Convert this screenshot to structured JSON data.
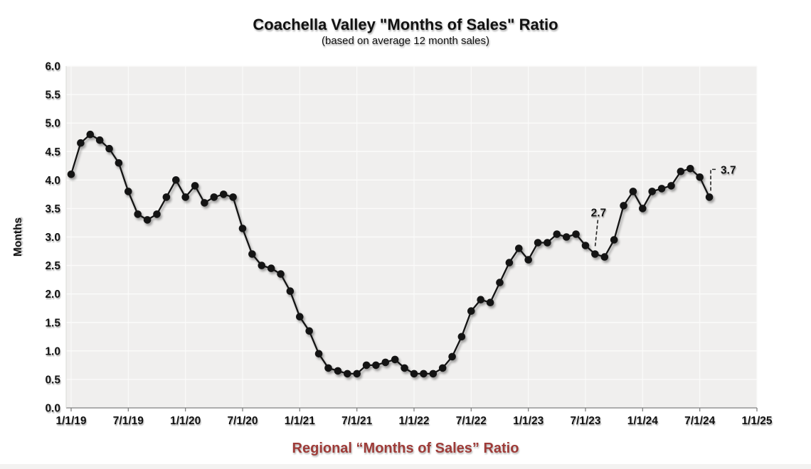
{
  "header": {
    "title": "Coachella Valley \"Months of Sales\" Ratio",
    "subtitle": "(based on average 12 month sales)"
  },
  "footer": {
    "label": "Regional “Months of Sales” Ratio",
    "color": "#9e3b38"
  },
  "chart_data": {
    "type": "line",
    "title": "Coachella Valley \"Months of Sales\" Ratio",
    "subtitle": "(based on average 12 month sales)",
    "ylabel": "Months",
    "xlabel": "",
    "ylim": [
      0.0,
      6.0
    ],
    "ytick_step": 0.5,
    "grid": true,
    "legend": "none",
    "x_tick_labels": [
      "1/1/19",
      "7/1/19",
      "1/1/20",
      "7/1/20",
      "1/1/21",
      "7/1/21",
      "1/1/22",
      "7/1/22",
      "1/1/23",
      "7/1/23",
      "1/1/24",
      "7/1/24",
      "1/1/25"
    ],
    "x_start_month": "1/1/19",
    "x_frequency": "monthly",
    "values": [
      4.1,
      4.65,
      4.8,
      4.7,
      4.55,
      4.3,
      3.8,
      3.4,
      3.3,
      3.4,
      3.7,
      4.0,
      3.7,
      3.9,
      3.6,
      3.7,
      3.75,
      3.7,
      3.15,
      2.7,
      2.5,
      2.45,
      2.35,
      2.05,
      1.6,
      1.35,
      0.95,
      0.7,
      0.65,
      0.6,
      0.6,
      0.75,
      0.75,
      0.8,
      0.85,
      0.7,
      0.6,
      0.6,
      0.6,
      0.7,
      0.9,
      1.25,
      1.7,
      1.9,
      1.85,
      2.2,
      2.55,
      2.8,
      2.6,
      2.9,
      2.9,
      3.05,
      3.0,
      3.05,
      2.85,
      2.7,
      2.65,
      2.95,
      3.55,
      3.8,
      3.5,
      3.8,
      3.85,
      3.9,
      4.15,
      4.2,
      4.05,
      3.7
    ],
    "annotations": [
      {
        "text": "2.7",
        "point_index": 55,
        "month": "8/1/23",
        "placement": "above"
      },
      {
        "text": "3.7",
        "point_index": 67,
        "month": "8/1/24",
        "placement": "right"
      }
    ],
    "styles": {
      "line_color": "#141414",
      "marker_color": "#141414",
      "plot_bg": "#f0efee",
      "grid_color": "#fbfbfa",
      "axis_line_color": "#808080",
      "tick_color": "#808080",
      "label_color": "#111111"
    }
  }
}
